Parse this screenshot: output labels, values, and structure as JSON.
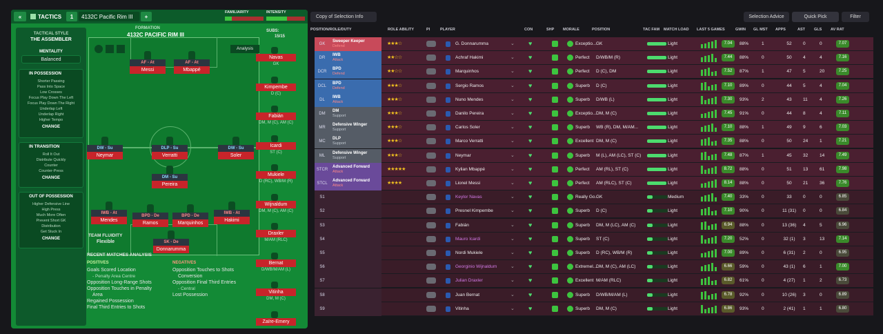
{
  "topbar": {
    "tactics_label": "TACTICS",
    "slot": "1",
    "tactic_name": "4132C Pacific Rim  III",
    "familiarity_label": "FAMILIARITY",
    "intensity_label": "INTENSITY"
  },
  "leftcol": {
    "style_label": "TACTICAL STYLE",
    "style_name": "THE ASSEMBLER",
    "mentality_label": "MENTALITY",
    "mentality_value": "Balanced",
    "in_possession": {
      "title": "IN POSSESSION",
      "items": [
        "Shorter Passing",
        "Pass Into Space",
        "Low Crosses",
        "Focus Play Down The Left",
        "Focus Play Down The Right",
        "Underlap Left",
        "Underlap Right",
        "Higher Tempo"
      ],
      "change": "CHANGE"
    },
    "in_transition": {
      "title": "IN TRANSITION",
      "items": [
        "Roll It Out",
        "Distribute Quickly",
        "Counter",
        "Counter-Press"
      ],
      "change": "CHANGE"
    },
    "out_possession": {
      "title": "OUT OF POSSESSION",
      "items": [
        "Higher Defensive Line",
        "High Press",
        "Much More Often",
        "Prevent Short GK",
        "Distribution",
        "Get Stuck In"
      ],
      "change": "CHANGE"
    }
  },
  "formation": {
    "label": "FORMATION",
    "name": "4132C PACIFIC RIM  III",
    "subs_label": "SUBS:",
    "subs_count": "15/15",
    "analysis": "Analysis"
  },
  "pitch": [
    {
      "role": "AF - At",
      "name": "Messi",
      "rc": "rd"
    },
    {
      "role": "AF - At",
      "name": "Mbappé",
      "rc": "rd"
    },
    {
      "role": "DW - Su",
      "name": "Neymar",
      "rc": "rc"
    },
    {
      "role": "DLP - Su",
      "name": "Verratti",
      "rc": "rc"
    },
    {
      "role": "DW - Su",
      "name": "Soler",
      "rc": "rc"
    },
    {
      "role": "DM - Su",
      "name": "Pereira",
      "rc": "rc"
    },
    {
      "role": "IWB - At",
      "name": "Mendes",
      "rc": "rd"
    },
    {
      "role": "BPD - De",
      "name": "Ramos",
      "rc": "rd"
    },
    {
      "role": "BPD - De",
      "name": "Marquinhos",
      "rc": "rd"
    },
    {
      "role": "IWB - At",
      "name": "Hakimi",
      "rc": "rd"
    },
    {
      "role": "SK - De",
      "name": "Donnarumma",
      "rc": "rd"
    }
  ],
  "subs": [
    {
      "name": "Navas",
      "pos": "GK"
    },
    {
      "name": "Kimpembe",
      "pos": "D (C)"
    },
    {
      "name": "Fabián",
      "pos": "DM, M (C), AM (C)"
    },
    {
      "name": "Icardi",
      "pos": "ST (C)"
    },
    {
      "name": "Mukiele",
      "pos": "D (RC), WB/M (R)"
    },
    {
      "name": "Wijnaldum",
      "pos": "DM, M (C), AM (C)"
    },
    {
      "name": "Draxler",
      "pos": "M/AM (RLC)"
    },
    {
      "name": "Bernat",
      "pos": "D/WB/M/AM (L)"
    },
    {
      "name": "Vitinha",
      "pos": "DM, M (C)"
    },
    {
      "name": "Zaïre-Emery",
      "pos": ""
    }
  ],
  "fluidity": {
    "label": "TEAM FLUIDITY",
    "value": "Flexible"
  },
  "analysis": {
    "title": "RECENT MATCHES ANALYSIS",
    "positives_label": "POSITIVES",
    "positives": [
      "Goals Scored Location",
      "- Penalty Area Centre",
      "Opposition Long-Range Shots",
      "Opposition Touches in Penalty",
      "Area",
      "Regained Possession",
      "Final Third Entries to Shots"
    ],
    "negatives_label": "NEGATIVES",
    "negatives": [
      "Opposition Touches to Shots",
      "Conversion",
      "Opposition Final Third Entries",
      "- Central",
      "Lost Possession"
    ]
  },
  "toolbar": {
    "view": "Copy of Selection Info",
    "selection_advice": "Selection Advice",
    "quick_pick": "Quick Pick",
    "filter": "Filter"
  },
  "headers": {
    "prd": "POSITION/ROLE/DUTY",
    "ra": "ROLE ABILITY",
    "pi": "PI",
    "player": "PLAYER",
    "con": "CON",
    "shp": "SHP",
    "morale": "MORALE",
    "position": "POSITION",
    "tac": "TAC FAM",
    "load": "MATCH LOAD",
    "last5": "LAST 5 GAMES",
    "gwin": "GWIN",
    "glmst": "GL MST",
    "apps": "APPS",
    "ast": "AST",
    "gls": "GLS",
    "avrat": "AV RAT"
  },
  "rows": [
    {
      "pos": "GK",
      "role": "Sweeper Keeper",
      "duty": "Defend",
      "stars": "★★★☆",
      "player": "G. Donnarumma",
      "morale": "Exceptio...",
      "position": "GK",
      "load": "Light",
      "rating": "7.04",
      "gwin": "88%",
      "glmst": "1",
      "apps": "52",
      "ast": "0",
      "gls": "0",
      "avrat": "7.07",
      "accent": "#c84a5a"
    },
    {
      "pos": "DR",
      "role": "IWB",
      "duty": "Attack",
      "stars": "★★☆☆",
      "player": "Achraf Hakimi",
      "morale": "Perfect",
      "position": "D/WB/M (R)",
      "load": "Light",
      "rating": "7.44",
      "gwin": "88%",
      "glmst": "0",
      "apps": "50",
      "ast": "4",
      "gls": "4",
      "avrat": "7.16",
      "accent": "#3a6cae"
    },
    {
      "pos": "DCR",
      "role": "BPD",
      "duty": "Defend",
      "stars": "★★☆☆",
      "player": "Marquinhos",
      "morale": "Perfect",
      "position": "D (C), DM",
      "load": "Light",
      "rating": "7.52",
      "gwin": "87%",
      "glmst": "1",
      "apps": "47",
      "ast": "5",
      "gls": "20",
      "avrat": "7.25",
      "accent": "#3a6cae"
    },
    {
      "pos": "DCL",
      "role": "BPD",
      "duty": "Defend",
      "stars": "★★★☆",
      "player": "Sergio Ramos",
      "morale": "Superb",
      "position": "D (C)",
      "load": "Light",
      "rating": "7.10",
      "gwin": "89%",
      "glmst": "0",
      "apps": "44",
      "ast": "5",
      "gls": "4",
      "avrat": "7.04",
      "accent": "#3a6cae"
    },
    {
      "pos": "DL",
      "role": "IWB",
      "duty": "Attack",
      "stars": "★★★☆",
      "player": "Nuno Mendes",
      "morale": "Superb",
      "position": "D/WB (L)",
      "load": "Light",
      "rating": "7.30",
      "gwin": "93%",
      "glmst": "2",
      "apps": "43",
      "ast": "11",
      "gls": "4",
      "avrat": "7.26",
      "accent": "#3a6cae"
    },
    {
      "pos": "DM",
      "role": "DM",
      "duty": "Support",
      "stars": "★★★☆",
      "player": "Danilo Pereira",
      "morale": "Exceptio...",
      "position": "DM, M (C)",
      "load": "Light",
      "rating": "7.45",
      "gwin": "91%",
      "glmst": "0",
      "apps": "44",
      "ast": "8",
      "gls": "4",
      "avrat": "7.11",
      "accent": "#555c66"
    },
    {
      "pos": "MR",
      "role": "Defensive Winger",
      "duty": "Support",
      "stars": "★★★☆",
      "player": "Carlos Soler",
      "morale": "Superb",
      "position": "WB (R), DM, M/AM...",
      "load": "Light",
      "rating": "7.10",
      "gwin": "88%",
      "glmst": "1",
      "apps": "49",
      "ast": "9",
      "gls": "6",
      "avrat": "7.03",
      "accent": "#555c66"
    },
    {
      "pos": "MC",
      "role": "DLP",
      "duty": "Support",
      "stars": "★★★☆",
      "player": "Marco Verratti",
      "morale": "Excellent",
      "position": "DM, M (C)",
      "load": "Light",
      "rating": "7.35",
      "gwin": "88%",
      "glmst": "0",
      "apps": "50",
      "ast": "24",
      "gls": "1",
      "avrat": "7.21",
      "accent": "#555c66"
    },
    {
      "pos": "ML",
      "role": "Defensive Winger",
      "duty": "Support",
      "stars": "★★★☆",
      "player": "Neymar",
      "morale": "Superb",
      "position": "M (L), AM (LC), ST (C)",
      "load": "Light",
      "rating": "7.48",
      "gwin": "87%",
      "glmst": "1",
      "apps": "45",
      "ast": "32",
      "gls": "14",
      "avrat": "7.49",
      "accent": "#555c66"
    },
    {
      "pos": "STCR",
      "role": "Advanced Forward",
      "duty": "Attack",
      "stars": "★★★★★",
      "player": "Kylian Mbappé",
      "morale": "Perfect",
      "position": "AM (RL), ST (C)",
      "load": "Light",
      "rating": "8.72",
      "gwin": "88%",
      "glmst": "0",
      "apps": "51",
      "ast": "13",
      "gls": "61",
      "avrat": "7.98",
      "accent": "#6a4a9a"
    },
    {
      "pos": "STCL",
      "role": "Advanced Forward",
      "duty": "Attack",
      "stars": "★★★★",
      "player": "Lionel Messi",
      "morale": "Perfect",
      "position": "AM (RLC), ST (C)",
      "load": "Light",
      "rating": "8.14",
      "gwin": "88%",
      "glmst": "0",
      "apps": "50",
      "ast": "21",
      "gls": "36",
      "avrat": "7.76",
      "accent": "#6a4a9a"
    },
    {
      "pos": "S1",
      "role": "",
      "duty": "",
      "stars": "",
      "player": "Keylor Navas",
      "morale": "Really Go...",
      "position": "GK",
      "load": "Medium",
      "rating": "7.40",
      "gwin": "33%",
      "glmst": "0",
      "apps": "33",
      "ast": "0",
      "gls": "0",
      "avrat": "6.85",
      "accent": ""
    },
    {
      "pos": "S2",
      "role": "",
      "duty": "",
      "stars": "",
      "player": "Presnel Kimpembe",
      "morale": "Superb",
      "position": "D (C)",
      "load": "Light",
      "rating": "7.10",
      "gwin": "90%",
      "glmst": "0",
      "apps": "11 (31)",
      "ast": "0",
      "gls": "0",
      "avrat": "6.84",
      "accent": ""
    },
    {
      "pos": "S3",
      "role": "",
      "duty": "",
      "stars": "",
      "player": "Fabián",
      "morale": "Superb",
      "position": "DM, M (LC), AM (C)",
      "load": "Light",
      "rating": "6.94",
      "gwin": "88%",
      "glmst": "0",
      "apps": "13 (36)",
      "ast": "4",
      "gls": "5",
      "avrat": "6.96",
      "accent": ""
    },
    {
      "pos": "S4",
      "role": "",
      "duty": "",
      "stars": "",
      "player": "Mauro Icardi",
      "morale": "Superb",
      "position": "ST (C)",
      "load": "Light",
      "rating": "7.20",
      "gwin": "52%",
      "glmst": "0",
      "apps": "32 (1)",
      "ast": "3",
      "gls": "13",
      "avrat": "7.14",
      "accent": ""
    },
    {
      "pos": "S5",
      "role": "",
      "duty": "",
      "stars": "",
      "player": "Nordi Mukiele",
      "morale": "Superb",
      "position": "D (RC), WB/M (R)",
      "load": "Light",
      "rating": "7.00",
      "gwin": "89%",
      "glmst": "0",
      "apps": "6 (31)",
      "ast": "2",
      "gls": "0",
      "avrat": "6.95",
      "accent": ""
    },
    {
      "pos": "S6",
      "role": "",
      "duty": "",
      "stars": "",
      "player": "Georginio Wijnaldum",
      "morale": "Extremel...",
      "position": "DM, M (C), AM (LC)",
      "load": "Light",
      "rating": "6.66",
      "gwin": "59%",
      "glmst": "0",
      "apps": "43 (1)",
      "ast": "6",
      "gls": "1",
      "avrat": "7.00",
      "accent": ""
    },
    {
      "pos": "S7",
      "role": "",
      "duty": "",
      "stars": "",
      "player": "Julian Draxler",
      "morale": "Excellent",
      "position": "M/AM (RLC)",
      "load": "Light",
      "rating": "6.82",
      "gwin": "61%",
      "glmst": "0",
      "apps": "4 (27)",
      "ast": "1",
      "gls": "2",
      "avrat": "6.73",
      "accent": ""
    },
    {
      "pos": "S8",
      "role": "",
      "duty": "",
      "stars": "",
      "player": "Juan Bernat",
      "morale": "Superb",
      "position": "D/WB/M/AM (L)",
      "load": "Light",
      "rating": "6.78",
      "gwin": "92%",
      "glmst": "0",
      "apps": "10 (26)",
      "ast": "3",
      "gls": "0",
      "avrat": "6.89",
      "accent": ""
    },
    {
      "pos": "S9",
      "role": "",
      "duty": "",
      "stars": "",
      "player": "Vitinha",
      "morale": "Superb",
      "position": "DM, M (C)",
      "load": "Light",
      "rating": "6.86",
      "gwin": "93%",
      "glmst": "0",
      "apps": "2 (41)",
      "ast": "1",
      "gls": "1",
      "avrat": "6.80",
      "accent": ""
    }
  ],
  "colors": {
    "pitch": "#138a36",
    "row_bg": "#4a1f30",
    "rating_good": "#3a8a2a",
    "rating_mid": "#5a5a2a"
  }
}
